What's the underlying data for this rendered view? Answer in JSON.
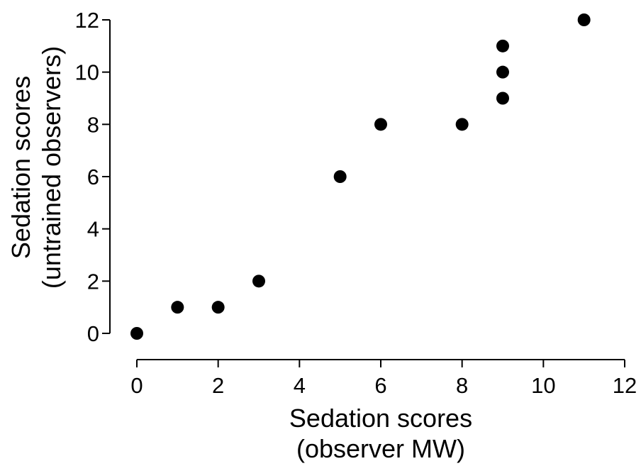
{
  "chart_data": {
    "type": "scatter",
    "title": "",
    "xlabel": [
      "Sedation scores",
      "(observer MW)"
    ],
    "ylabel": [
      "Sedation scores",
      "(untrained observers)"
    ],
    "xlim": [
      0,
      12
    ],
    "ylim": [
      0,
      12
    ],
    "xticks": [
      0,
      2,
      4,
      6,
      8,
      10,
      12
    ],
    "yticks": [
      0,
      2,
      4,
      6,
      8,
      10,
      12
    ],
    "grid": false,
    "point_color": "#000000",
    "series": [
      {
        "points": [
          {
            "x": 0,
            "y": 0
          },
          {
            "x": 1,
            "y": 1
          },
          {
            "x": 2,
            "y": 1
          },
          {
            "x": 3,
            "y": 2
          },
          {
            "x": 5,
            "y": 6
          },
          {
            "x": 6,
            "y": 8
          },
          {
            "x": 8,
            "y": 8
          },
          {
            "x": 9,
            "y": 9
          },
          {
            "x": 9,
            "y": 10
          },
          {
            "x": 9,
            "y": 11
          },
          {
            "x": 11,
            "y": 12
          }
        ]
      }
    ]
  }
}
